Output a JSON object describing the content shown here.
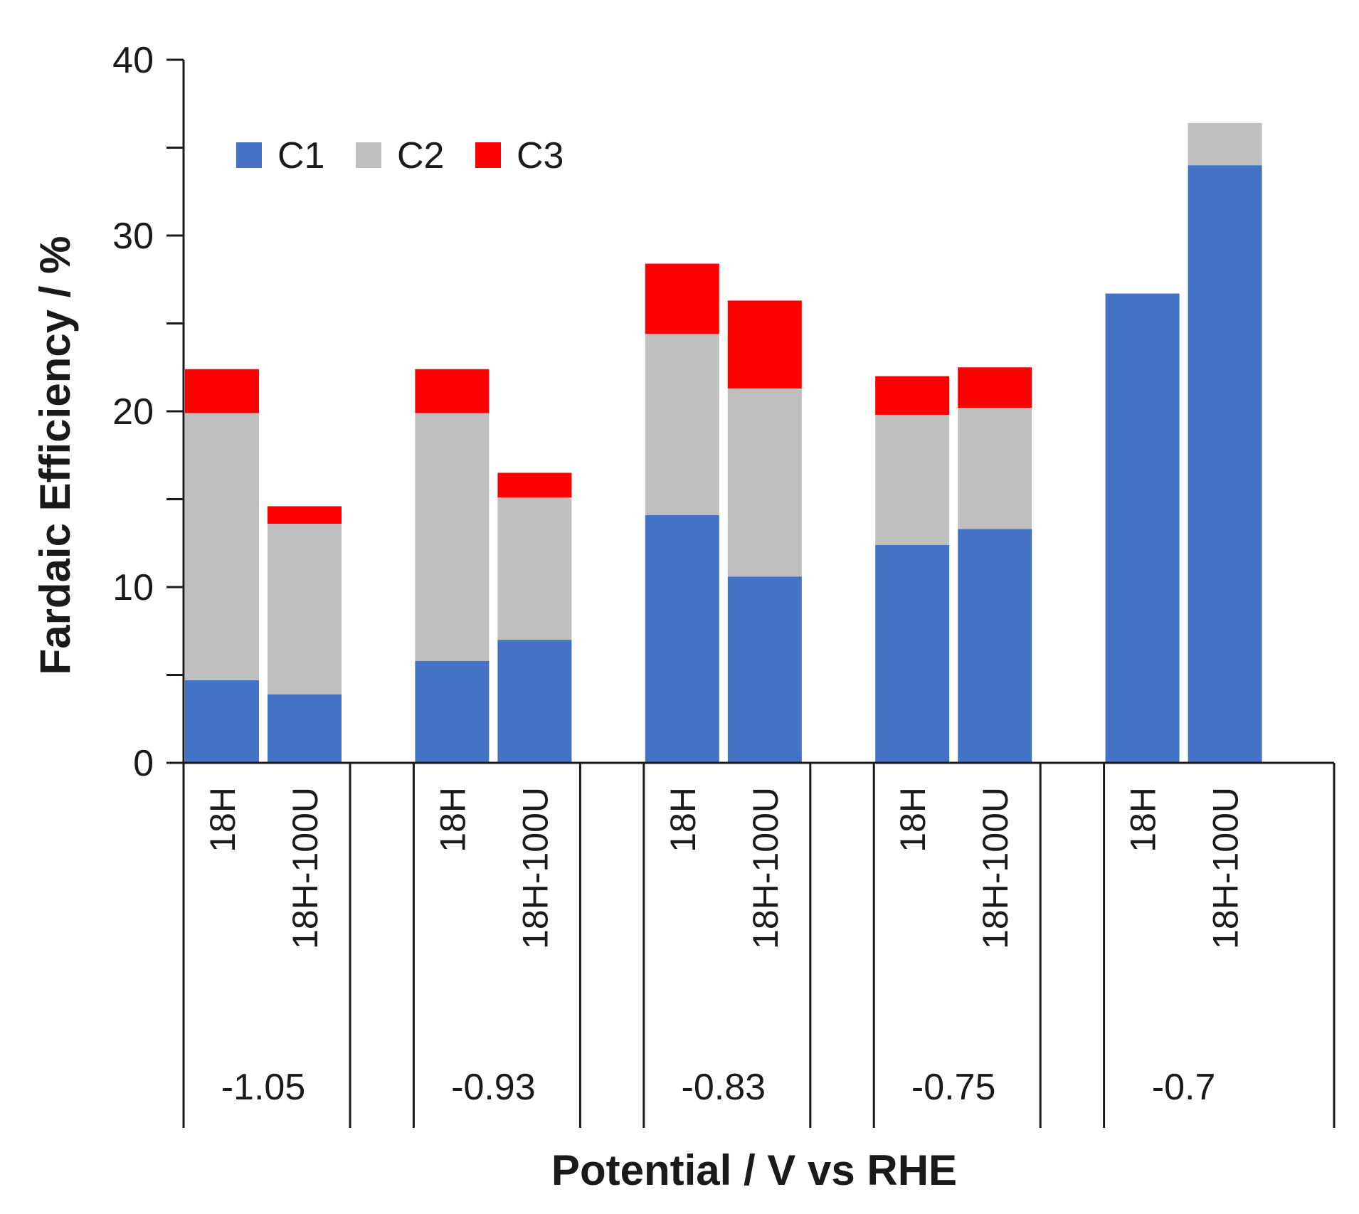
{
  "chart_data": {
    "type": "bar",
    "stacked": true,
    "title": "",
    "xlabel": "Potential  / V vs RHE",
    "ylabel": "Fardaic Efficiency  / %",
    "ylim": [
      0,
      40
    ],
    "yticks": [
      "0",
      "10",
      "20",
      "30",
      "40"
    ],
    "groups": [
      {
        "label": "-1.05",
        "categories": [
          "18H",
          "18H-100U"
        ]
      },
      {
        "label": "-0.93",
        "categories": [
          "18H",
          "18H-100U"
        ]
      },
      {
        "label": "-0.83",
        "categories": [
          "18H",
          "18H-100U"
        ]
      },
      {
        "label": "-0.75",
        "categories": [
          "18H",
          "18H-100U"
        ]
      },
      {
        "label": "-0.7",
        "categories": [
          "18H",
          "18H-100U"
        ]
      }
    ],
    "series": [
      {
        "name": "C1",
        "color": "#4472C4",
        "values": [
          4.7,
          3.9,
          5.8,
          7.0,
          14.1,
          10.6,
          12.4,
          13.3,
          26.7,
          34.0
        ]
      },
      {
        "name": "C2",
        "color": "#BFBFBF",
        "values": [
          15.2,
          9.7,
          14.1,
          8.1,
          10.3,
          10.7,
          7.4,
          6.9,
          0,
          2.4
        ]
      },
      {
        "name": "C3",
        "color": "#FF0000",
        "values": [
          2.5,
          1.0,
          2.5,
          1.4,
          4.0,
          5.0,
          2.2,
          2.3,
          0,
          0
        ]
      }
    ],
    "legend_position": "top-left"
  }
}
